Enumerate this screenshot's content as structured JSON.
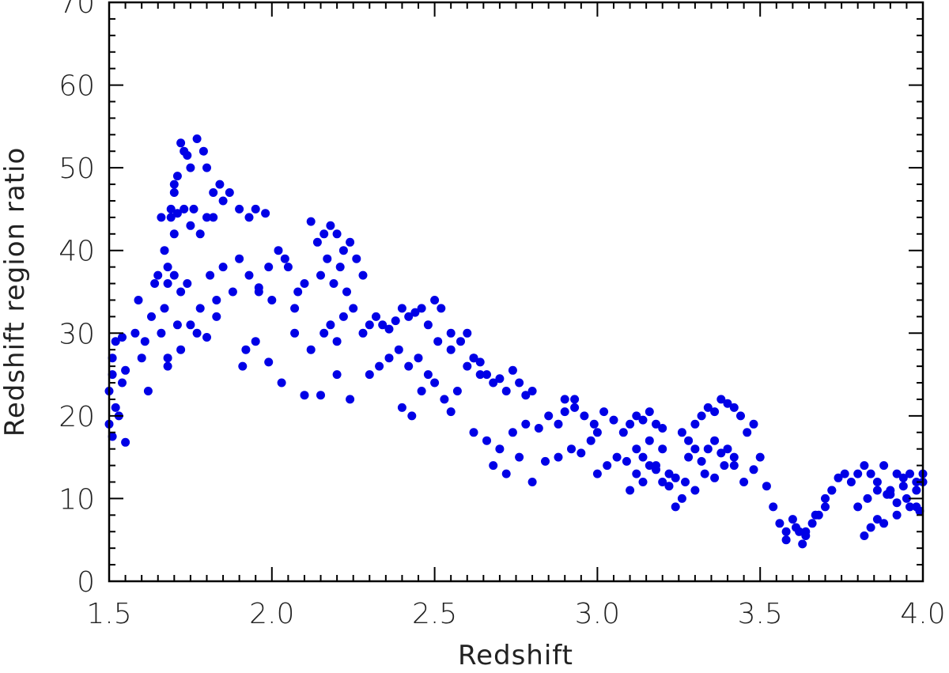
{
  "chart_data": {
    "type": "scatter",
    "title": "",
    "xlabel": "Redshift",
    "ylabel": "Redshift region ratio",
    "xlim": [
      1.5,
      4.0
    ],
    "ylim": [
      0,
      70
    ],
    "xticks": [
      1.5,
      2.0,
      2.5,
      3.0,
      3.5,
      4.0
    ],
    "xtick_labels": [
      "1.5",
      "2.0",
      "2.5",
      "3.0",
      "3.5",
      "4.0"
    ],
    "yticks": [
      0,
      10,
      20,
      30,
      40,
      50,
      60,
      70
    ],
    "ytick_labels": [
      "0",
      "10",
      "20",
      "30",
      "40",
      "50",
      "60",
      "70"
    ],
    "grid": false,
    "legend": "none",
    "marker_color": "#0000e6",
    "series": [
      {
        "x": [
          1.5,
          1.5,
          1.51,
          1.51,
          1.51,
          1.52,
          1.52,
          1.53,
          1.54,
          1.54,
          1.55,
          1.55,
          1.58,
          1.59,
          1.6,
          1.61,
          1.62,
          1.63,
          1.64,
          1.65,
          1.66,
          1.67,
          1.68,
          1.69,
          1.7,
          1.71,
          1.72,
          1.67,
          1.69,
          1.7,
          1.71,
          1.73,
          1.74,
          1.75,
          1.77,
          1.79,
          1.8,
          1.82,
          1.84,
          1.7,
          1.73,
          1.75,
          1.76,
          1.78,
          1.8,
          1.82,
          1.85,
          1.87,
          1.9,
          1.93,
          1.95,
          1.98,
          1.68,
          1.7,
          1.72,
          1.74,
          1.78,
          1.81,
          1.85,
          1.9,
          1.93,
          1.96,
          1.99,
          2.02,
          2.05,
          2.08,
          1.66,
          1.68,
          1.71,
          1.75,
          1.8,
          1.83,
          1.88,
          1.92,
          1.96,
          2.0,
          2.04,
          2.07,
          2.1,
          1.68,
          1.72,
          1.77,
          1.83,
          1.91,
          1.95,
          1.99,
          2.03,
          2.07,
          2.1,
          2.12,
          2.15,
          2.2,
          2.24,
          2.12,
          2.14,
          2.16,
          2.18,
          2.2,
          2.22,
          2.24,
          2.26,
          2.28,
          2.15,
          2.17,
          2.19,
          2.21,
          2.23,
          2.16,
          2.18,
          2.2,
          2.22,
          2.25,
          2.28,
          2.3,
          2.32,
          2.34,
          2.36,
          2.38,
          2.4,
          2.42,
          2.44,
          2.46,
          2.48,
          2.5,
          2.52,
          2.3,
          2.33,
          2.36,
          2.39,
          2.42,
          2.45,
          2.48,
          2.51,
          2.55,
          2.4,
          2.43,
          2.46,
          2.5,
          2.53,
          2.55,
          2.57,
          2.6,
          2.62,
          2.64,
          2.55,
          2.58,
          2.6,
          2.62,
          2.64,
          2.66,
          2.68,
          2.7,
          2.72,
          2.74,
          2.76,
          2.78,
          2.8,
          2.62,
          2.66,
          2.7,
          2.74,
          2.78,
          2.82,
          2.85,
          2.88,
          2.9,
          2.93,
          2.68,
          2.72,
          2.76,
          2.8,
          2.84,
          2.88,
          2.92,
          2.95,
          2.98,
          3.0,
          2.9,
          2.93,
          2.96,
          2.99,
          3.02,
          3.05,
          3.08,
          3.1,
          3.12,
          3.14,
          3.16,
          3.18,
          3.2,
          3.0,
          3.03,
          3.06,
          3.09,
          3.12,
          3.14,
          3.16,
          3.18,
          3.2,
          3.22,
          3.1,
          3.12,
          3.14,
          3.16,
          3.18,
          3.2,
          3.22,
          3.24,
          3.26,
          3.26,
          3.28,
          3.3,
          3.32,
          3.34,
          3.36,
          3.38,
          3.4,
          3.42,
          3.44,
          3.46,
          3.48,
          3.28,
          3.3,
          3.32,
          3.34,
          3.36,
          3.38,
          3.4,
          3.42,
          3.24,
          3.27,
          3.3,
          3.33,
          3.36,
          3.39,
          3.42,
          3.45,
          3.48,
          3.5,
          3.52,
          3.54,
          3.56,
          3.58,
          3.6,
          3.62,
          3.63,
          3.64,
          3.66,
          3.68,
          3.7,
          3.72,
          3.58,
          3.61,
          3.64,
          3.67,
          3.7,
          3.72,
          3.74,
          3.76,
          3.78,
          3.8,
          3.82,
          3.84,
          3.86,
          3.88,
          3.9,
          3.92,
          3.94,
          3.96,
          3.98,
          3.8,
          3.83,
          3.86,
          3.89,
          3.92,
          3.95,
          3.98,
          4.0,
          3.84,
          3.88,
          3.92,
          3.96,
          3.99,
          3.82,
          3.86,
          3.9,
          3.94,
          3.98,
          4.0
        ],
        "y": [
          19,
          23,
          17.5,
          25,
          27,
          21,
          29,
          20,
          24,
          29.5,
          16.8,
          25.5,
          30,
          34,
          27,
          29,
          23,
          32,
          36,
          37,
          44,
          40,
          38,
          45,
          47,
          49,
          53,
          33,
          44,
          48,
          44.5,
          52,
          51.5,
          50,
          53.5,
          52,
          50,
          47,
          48,
          42,
          45,
          43,
          45,
          42,
          44,
          44,
          46,
          47,
          45,
          44,
          45,
          44.5,
          36,
          37,
          35,
          36,
          33,
          37,
          38,
          39,
          37,
          35,
          38,
          40,
          38,
          35,
          30,
          27,
          31,
          31,
          29.5,
          34,
          35,
          28,
          35.5,
          34,
          39,
          33,
          36,
          26,
          28,
          30,
          32,
          26,
          29,
          26.5,
          24,
          30,
          22.5,
          28,
          22.5,
          25,
          22,
          43.5,
          41,
          42,
          43,
          42,
          40,
          41,
          39,
          37,
          37,
          39,
          36,
          38,
          35,
          30,
          31,
          29,
          32,
          33,
          30,
          31,
          32,
          31,
          30.5,
          31.5,
          33,
          32,
          32.5,
          33,
          31,
          34,
          33,
          25,
          26,
          27,
          28,
          26,
          27,
          25,
          29,
          30,
          21,
          20,
          23,
          24,
          22,
          20.5,
          23,
          26,
          27,
          25,
          28,
          29,
          30,
          27,
          26.5,
          25,
          24,
          24.5,
          23,
          25.5,
          24,
          22.5,
          23,
          18,
          17,
          16,
          18,
          19,
          18.5,
          20,
          19,
          20.5,
          22,
          14,
          13,
          15,
          12,
          14.5,
          15,
          16,
          15.5,
          17,
          18,
          22,
          21,
          20,
          19,
          20.5,
          19.5,
          18,
          19,
          20,
          19.5,
          20.5,
          19,
          18.5,
          13,
          14,
          15,
          14.5,
          16,
          15,
          17,
          14,
          16,
          13,
          11,
          13,
          12,
          14,
          13.5,
          12,
          11.5,
          12.5,
          10,
          18,
          17,
          19,
          20,
          21,
          20.5,
          22,
          21.5,
          21,
          20,
          18,
          19,
          15,
          16,
          14.5,
          16,
          17,
          15.5,
          16,
          14,
          9,
          12,
          11,
          13,
          12.5,
          14,
          15,
          12,
          13.5,
          15,
          11.5,
          9,
          7,
          6,
          7.5,
          6,
          4.5,
          5.5,
          7,
          8,
          9,
          11,
          5,
          6.5,
          6,
          8,
          10,
          11,
          12.5,
          13,
          12,
          13,
          14,
          13,
          12,
          14,
          11,
          13,
          12.5,
          13,
          12,
          9,
          10,
          11,
          10.5,
          9.5,
          10,
          11,
          12,
          6.5,
          7,
          8,
          9,
          8.5,
          5.5,
          7.5,
          10.5,
          11.5,
          9,
          13
        ]
      }
    ]
  }
}
